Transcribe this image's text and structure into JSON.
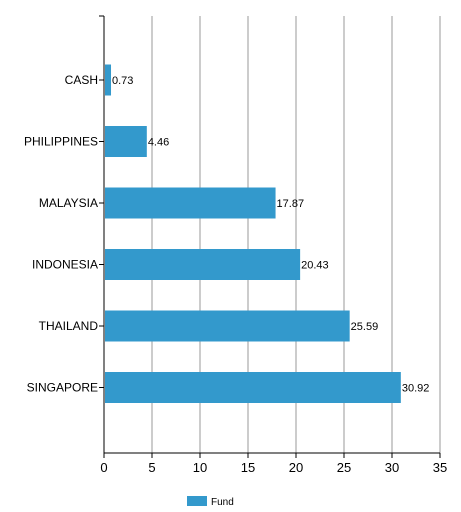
{
  "chart_data": {
    "type": "bar",
    "orientation": "horizontal",
    "categories": [
      "CASH",
      "PHILIPPINES",
      "MALAYSIA",
      "INDONESIA",
      "THAILAND",
      "SINGAPORE"
    ],
    "series": [
      {
        "name": "Fund",
        "values": [
          0.73,
          4.46,
          17.87,
          20.43,
          25.59,
          30.92
        ],
        "color": "#3399cc"
      }
    ],
    "value_labels": [
      "0.73",
      "4.46",
      "17.87",
      "20.43",
      "25.59",
      "30.92"
    ],
    "xlim": [
      0,
      35
    ],
    "x_ticks": [
      0,
      5,
      10,
      15,
      20,
      25,
      30,
      35
    ],
    "x_tick_labels": [
      "0",
      "5",
      "10",
      "15",
      "20",
      "25",
      "30",
      "35"
    ],
    "title": "",
    "xlabel": "",
    "ylabel": "",
    "grid": "vertical",
    "legend": {
      "position": "bottom-center",
      "entries": [
        "Fund"
      ]
    },
    "colors": {
      "bar": "#3399cc",
      "grid": "#999999",
      "axis": "#000000"
    }
  }
}
